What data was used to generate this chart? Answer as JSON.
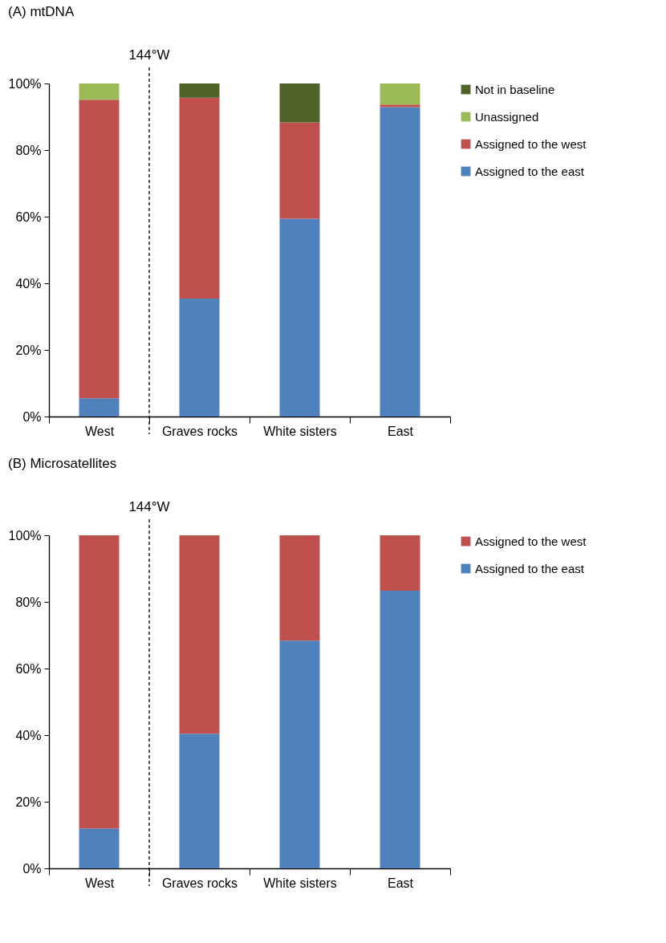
{
  "chart_data": [
    {
      "type": "bar",
      "title": "(A)  mtDNA",
      "stacked": true,
      "legend": "right",
      "categories": [
        "West",
        "Graves rocks",
        "White sisters",
        "East"
      ],
      "ylim": [
        0,
        100
      ],
      "yticks": [
        {
          "value": 0,
          "label": "0%"
        },
        {
          "value": 20,
          "label": "20%"
        },
        {
          "value": 40,
          "label": "40%"
        },
        {
          "value": 60,
          "label": "60%"
        },
        {
          "value": 80,
          "label": "80%"
        },
        {
          "value": 100,
          "label": "100%"
        }
      ],
      "series": [
        {
          "name": "Assigned to the east",
          "color": "#4f81bd",
          "values": [
            5.5,
            35.4,
            59.4,
            92.9
          ]
        },
        {
          "name": "Assigned to the west",
          "color": "#c0504d",
          "values": [
            89.6,
            60.3,
            28.9,
            0.8
          ]
        },
        {
          "name": "Unassigned",
          "color": "#9bbb59",
          "values": [
            4.9,
            0,
            0,
            6.3
          ]
        },
        {
          "name": "Not in baseline",
          "color": "#4f6228",
          "values": [
            0,
            4.3,
            11.7,
            0
          ]
        }
      ],
      "annotations": [
        "144°W"
      ]
    },
    {
      "type": "bar",
      "title": "(B)  Microsatellites",
      "stacked": true,
      "legend": "right",
      "categories": [
        "West",
        "Graves rocks",
        "White sisters",
        "East"
      ],
      "ylim": [
        0,
        100
      ],
      "yticks": [
        {
          "value": 0,
          "label": "0%"
        },
        {
          "value": 20,
          "label": "20%"
        },
        {
          "value": 40,
          "label": "40%"
        },
        {
          "value": 60,
          "label": "60%"
        },
        {
          "value": 80,
          "label": "80%"
        },
        {
          "value": 100,
          "label": "100%"
        }
      ],
      "series": [
        {
          "name": "Assigned to the east",
          "color": "#4f81bd",
          "values": [
            12,
            40.4,
            68.4,
            83.4
          ]
        },
        {
          "name": "Assigned to the west",
          "color": "#c0504d",
          "values": [
            88,
            59.6,
            31.6,
            16.6
          ]
        }
      ],
      "annotations": [
        "144°W"
      ]
    }
  ]
}
